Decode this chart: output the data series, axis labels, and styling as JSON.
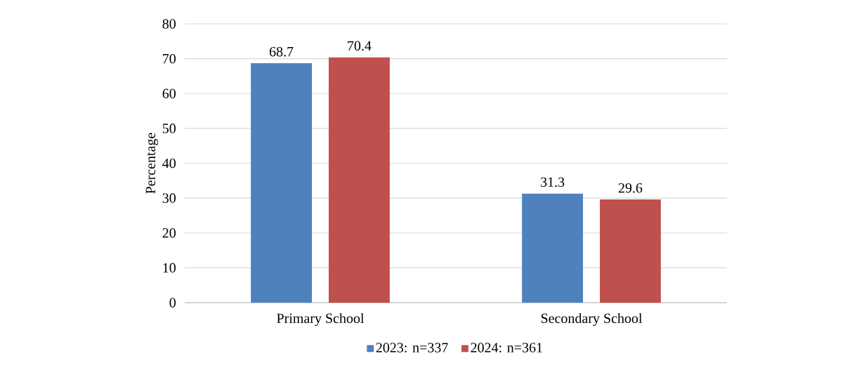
{
  "chart_data": {
    "type": "bar",
    "ylabel": "Percentage",
    "categories": [
      "Primary School",
      "Secondary School"
    ],
    "series": [
      {
        "name": "2023: n=337",
        "color": "#4f81bd",
        "values": [
          68.7,
          31.3
        ]
      },
      {
        "name": "2024: n=361",
        "color": "#c0504d",
        "values": [
          70.4,
          29.6
        ]
      }
    ],
    "ylim": [
      0,
      80
    ],
    "yticks": [
      0,
      10,
      20,
      30,
      40,
      50,
      60,
      70,
      80
    ],
    "grid": "y",
    "legend": "bottom",
    "data_labels": true
  }
}
